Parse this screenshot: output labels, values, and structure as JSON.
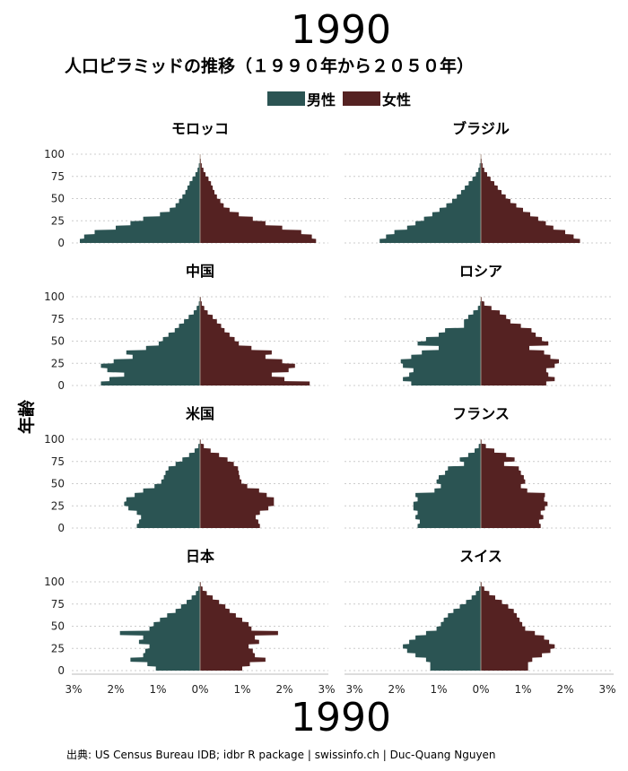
{
  "header": {
    "year": "1990",
    "subtitle": "人口ピラミッドの推移（１９９０年から２０５０年）"
  },
  "footer": {
    "year": "1990",
    "caption": "出典: US Census Bureau IDB; idbr R package | swissinfo.ch | Duc-Quang Nguyen"
  },
  "colors": {
    "male": "#2b5453",
    "female": "#552222",
    "grid": "#cccccc"
  },
  "chart_data": {
    "type": "area",
    "title": "1990",
    "subtitle": "人口ピラミッドの推移（１９９０年から２０５０年）",
    "ylabel": "年齢",
    "xlabel": "",
    "legend": {
      "placement": "top-center",
      "entries": [
        "男性",
        "女性"
      ]
    },
    "grid": true,
    "ylim": [
      0,
      100
    ],
    "xlim": [
      -3,
      3
    ],
    "y_ticks": [
      0,
      25,
      50,
      75,
      100
    ],
    "x_ticks": [
      -3,
      -2,
      -1,
      0,
      1,
      2,
      3
    ],
    "x_tick_labels": [
      "3%",
      "2%",
      "1%",
      "0%",
      "1%",
      "2%",
      "3%"
    ],
    "age": [
      0,
      5,
      10,
      15,
      20,
      25,
      30,
      35,
      40,
      45,
      50,
      55,
      60,
      65,
      70,
      75,
      80,
      85,
      90,
      95
    ],
    "panels": [
      {
        "name": "モロッコ",
        "male": [
          2.85,
          2.75,
          2.5,
          2.0,
          1.65,
          1.35,
          0.95,
          0.72,
          0.58,
          0.5,
          0.42,
          0.35,
          0.3,
          0.25,
          0.18,
          0.11,
          0.06,
          0.03,
          0.01,
          0.0
        ],
        "female": [
          2.75,
          2.65,
          2.4,
          1.95,
          1.55,
          1.25,
          0.92,
          0.7,
          0.56,
          0.48,
          0.4,
          0.34,
          0.3,
          0.26,
          0.2,
          0.13,
          0.08,
          0.04,
          0.02,
          0.01
        ]
      },
      {
        "name": "ブラジル",
        "male": [
          2.4,
          2.25,
          2.05,
          1.75,
          1.55,
          1.35,
          1.15,
          0.98,
          0.82,
          0.68,
          0.57,
          0.47,
          0.38,
          0.29,
          0.2,
          0.12,
          0.06,
          0.03,
          0.01,
          0.0
        ],
        "female": [
          2.35,
          2.2,
          2.0,
          1.72,
          1.54,
          1.36,
          1.17,
          1.0,
          0.84,
          0.7,
          0.59,
          0.49,
          0.4,
          0.32,
          0.23,
          0.15,
          0.08,
          0.04,
          0.02,
          0.01
        ]
      },
      {
        "name": "中国",
        "male": [
          2.35,
          2.15,
          1.8,
          2.2,
          2.35,
          2.05,
          1.6,
          1.75,
          1.28,
          0.98,
          0.88,
          0.75,
          0.6,
          0.5,
          0.38,
          0.27,
          0.15,
          0.08,
          0.03,
          0.01
        ],
        "female": [
          2.6,
          2.0,
          1.7,
          2.1,
          2.25,
          1.95,
          1.55,
          1.7,
          1.22,
          0.92,
          0.82,
          0.7,
          0.58,
          0.5,
          0.4,
          0.3,
          0.18,
          0.1,
          0.04,
          0.02
        ]
      },
      {
        "name": "ロシア",
        "male": [
          1.65,
          1.85,
          1.7,
          1.6,
          1.85,
          1.9,
          1.65,
          1.4,
          1.0,
          1.5,
          1.3,
          1.0,
          0.85,
          0.4,
          0.4,
          0.3,
          0.18,
          0.07,
          0.02,
          0.0
        ],
        "female": [
          1.55,
          1.75,
          1.6,
          1.55,
          1.75,
          1.85,
          1.65,
          1.5,
          1.15,
          1.6,
          1.45,
          1.3,
          1.2,
          0.95,
          0.7,
          0.6,
          0.45,
          0.25,
          0.08,
          0.02
        ]
      },
      {
        "name": "米国",
        "male": [
          1.5,
          1.45,
          1.4,
          1.5,
          1.7,
          1.8,
          1.75,
          1.55,
          1.35,
          1.08,
          0.92,
          0.86,
          0.82,
          0.75,
          0.58,
          0.42,
          0.26,
          0.13,
          0.04,
          0.01
        ],
        "female": [
          1.42,
          1.38,
          1.32,
          1.42,
          1.62,
          1.75,
          1.75,
          1.58,
          1.4,
          1.12,
          0.98,
          0.94,
          0.92,
          0.9,
          0.8,
          0.65,
          0.45,
          0.25,
          0.09,
          0.02
        ]
      },
      {
        "name": "フランス",
        "male": [
          1.5,
          1.45,
          1.55,
          1.5,
          1.6,
          1.6,
          1.5,
          1.55,
          1.1,
          0.95,
          1.05,
          1.0,
          0.85,
          0.78,
          0.4,
          0.5,
          0.3,
          0.15,
          0.05,
          0.01
        ],
        "female": [
          1.42,
          1.38,
          1.48,
          1.42,
          1.52,
          1.58,
          1.5,
          1.52,
          1.1,
          0.95,
          1.05,
          1.02,
          0.95,
          0.9,
          0.55,
          0.8,
          0.6,
          0.32,
          0.12,
          0.02
        ]
      },
      {
        "name": "日本",
        "male": [
          1.05,
          1.25,
          1.65,
          1.35,
          1.3,
          1.2,
          1.45,
          1.35,
          1.9,
          1.2,
          1.1,
          0.95,
          0.78,
          0.58,
          0.45,
          0.32,
          0.2,
          0.1,
          0.04,
          0.01
        ],
        "female": [
          1.0,
          1.18,
          1.55,
          1.3,
          1.25,
          1.15,
          1.4,
          1.3,
          1.85,
          1.22,
          1.15,
          1.0,
          0.85,
          0.7,
          0.6,
          0.45,
          0.3,
          0.16,
          0.06,
          0.02
        ]
      },
      {
        "name": "スイス",
        "male": [
          1.2,
          1.2,
          1.3,
          1.55,
          1.75,
          1.85,
          1.7,
          1.55,
          1.3,
          1.05,
          0.95,
          0.88,
          0.78,
          0.65,
          0.5,
          0.35,
          0.22,
          0.12,
          0.04,
          0.01
        ],
        "female": [
          1.12,
          1.12,
          1.22,
          1.45,
          1.65,
          1.75,
          1.62,
          1.5,
          1.28,
          1.05,
          0.98,
          0.92,
          0.85,
          0.78,
          0.65,
          0.5,
          0.34,
          0.2,
          0.08,
          0.02
        ]
      }
    ]
  }
}
